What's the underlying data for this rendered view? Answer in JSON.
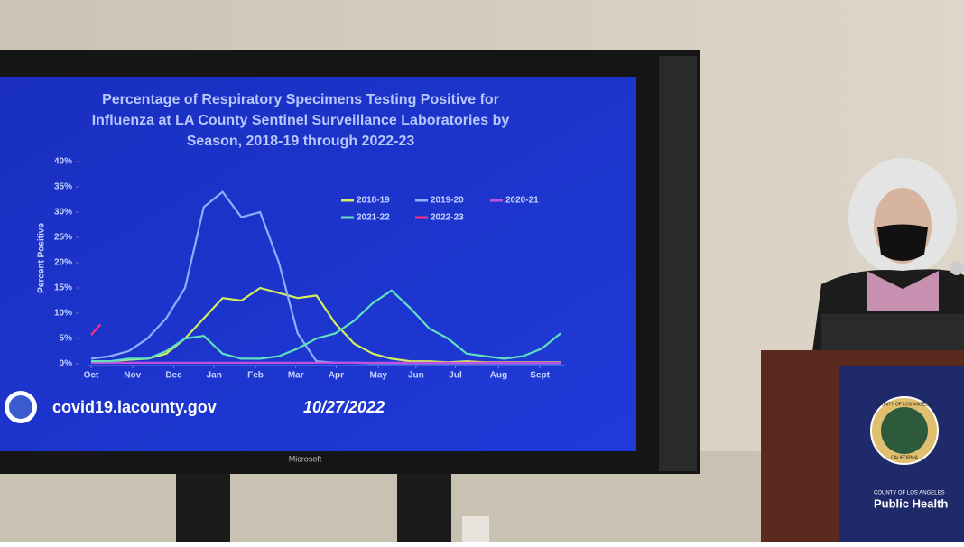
{
  "chart_data": {
    "type": "line",
    "title": [
      "Percentage of Respiratory Specimens Testing Positive for",
      "Influenza at LA County Sentinel Surveillance Laboratories by",
      "Season, 2018-19 through 2022-23"
    ],
    "y_label": "Percent Positive",
    "x": [
      0,
      2,
      4,
      6,
      8,
      10,
      12,
      14,
      16,
      18,
      20,
      22,
      24,
      26,
      28,
      30,
      32,
      34,
      36,
      38,
      40,
      42,
      44,
      46,
      48,
      50
    ],
    "xlim": [
      0,
      50
    ],
    "xticks": [
      {
        "value": 0,
        "label": "Oct"
      },
      {
        "value": 4.4,
        "label": "Nov"
      },
      {
        "value": 8.8,
        "label": "Dec"
      },
      {
        "value": 13.1,
        "label": "Jan"
      },
      {
        "value": 17.5,
        "label": "Feb"
      },
      {
        "value": 21.8,
        "label": "Mar"
      },
      {
        "value": 26.1,
        "label": "Apr"
      },
      {
        "value": 30.6,
        "label": "May"
      },
      {
        "value": 34.6,
        "label": "Jun"
      },
      {
        "value": 38.8,
        "label": "Jul"
      },
      {
        "value": 43.4,
        "label": "Aug"
      },
      {
        "value": 47.8,
        "label": "Sept"
      }
    ],
    "ylim": [
      0,
      40
    ],
    "yticks": [
      {
        "value": 0,
        "label": "0%"
      },
      {
        "value": 5,
        "label": "5%"
      },
      {
        "value": 10,
        "label": "10%"
      },
      {
        "value": 15,
        "label": "15%"
      },
      {
        "value": 20,
        "label": "20%"
      },
      {
        "value": 25,
        "label": "25%"
      },
      {
        "value": 30,
        "label": "30%"
      },
      {
        "value": 35,
        "label": "35%"
      },
      {
        "value": 40,
        "label": "40%"
      }
    ],
    "series": [
      {
        "name": "2018-19",
        "color": "#d4f05a",
        "values": [
          0.5,
          0.5,
          0.8,
          1,
          2,
          5,
          9,
          13,
          12.5,
          15,
          14,
          13,
          13.5,
          8,
          4,
          2,
          1,
          0.5,
          0.5,
          0.3,
          0.5,
          0.3,
          0.3,
          0.3,
          0.3,
          0.3
        ]
      },
      {
        "name": "2019-20",
        "color": "#8fb0ff",
        "values": [
          1,
          1.5,
          2.5,
          5,
          9,
          15,
          31,
          34,
          29,
          30,
          20,
          6,
          0.5,
          0.2,
          0.2,
          0.1,
          0.1,
          0.1,
          0.1,
          0.1,
          0.1,
          0.1,
          0.1,
          0.1,
          0.1,
          0.1
        ]
      },
      {
        "name": "2020-21",
        "color": "#c050e0",
        "values": [
          0.2,
          0.2,
          0.2,
          0.2,
          0.2,
          0.2,
          0.2,
          0.2,
          0.2,
          0.2,
          0.2,
          0.2,
          0.2,
          0.2,
          0.2,
          0.2,
          0.2,
          0.2,
          0.2,
          0.2,
          0.2,
          0.2,
          0.2,
          0.2,
          0.2,
          0.2
        ]
      },
      {
        "name": "2021-22",
        "color": "#60e0c0",
        "values": [
          0.5,
          0.5,
          1,
          1,
          2.5,
          5,
          5.5,
          2,
          1,
          1,
          1.5,
          3,
          5,
          6,
          8.5,
          12,
          14.5,
          11,
          7,
          5,
          2,
          1.5,
          1,
          1.5,
          3,
          6
        ]
      },
      {
        "name": "2022-23",
        "color": "#ff3080",
        "x": [
          0,
          1
        ],
        "values": [
          5.7,
          7.8
        ]
      }
    ]
  },
  "slide": {
    "url": "covid19.lacounty.gov",
    "date": "10/27/2022"
  },
  "monitor_brand": "Microsoft",
  "podium": {
    "seal_top": "COUNTY OF LOS ANGELES",
    "seal_bottom": "CALIFORNIA",
    "org_small": "COUNTY OF LOS ANGELES",
    "org": "Public Health"
  }
}
